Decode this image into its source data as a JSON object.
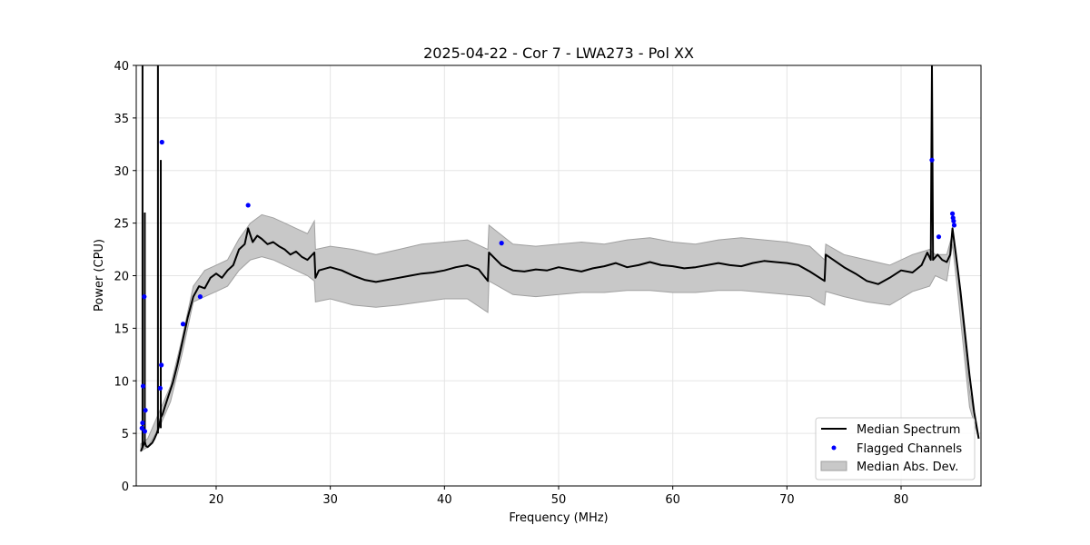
{
  "chart_data": {
    "type": "line",
    "title": "2025-04-22 - Cor 7 - LWA273 - Pol XX",
    "xlabel": "Frequency (MHz)",
    "ylabel": "Power (CPU)",
    "xlim": [
      13.0,
      87.0
    ],
    "ylim": [
      0,
      40
    ],
    "xticks": [
      20,
      30,
      40,
      50,
      60,
      70,
      80
    ],
    "yticks": [
      0,
      5,
      10,
      15,
      20,
      25,
      30,
      35,
      40
    ],
    "grid": true,
    "legend_position": "lower-right",
    "colors": {
      "median": "#000000",
      "flagged": "#0000ff",
      "mad_fill": "#c8c8c8",
      "mad_edge": "#a0a0a0",
      "grid": "#e5e5e5"
    },
    "series": [
      {
        "name": "Median Spectrum",
        "kind": "line",
        "x": [
          13.4,
          13.6,
          13.75,
          13.85,
          14.0,
          14.2,
          14.4,
          14.6,
          14.8,
          14.95,
          15.05,
          15.15,
          15.3,
          15.5,
          15.8,
          16.2,
          16.6,
          17.0,
          17.5,
          18.0,
          18.5,
          19.0,
          19.5,
          20.0,
          20.5,
          21.0,
          21.5,
          22.0,
          22.5,
          22.8,
          23.2,
          23.6,
          24.0,
          24.5,
          25.0,
          25.5,
          26.0,
          26.5,
          27.0,
          27.5,
          28.0,
          28.6,
          28.7,
          29.0,
          30.0,
          31.0,
          32.0,
          33.0,
          34.0,
          35.0,
          36.0,
          37.0,
          38.0,
          39.0,
          40.0,
          41.0,
          42.0,
          43.0,
          43.8,
          43.9,
          45.0,
          46.0,
          47.0,
          48.0,
          49.0,
          50.0,
          51.0,
          52.0,
          53.0,
          54.0,
          55.0,
          56.0,
          57.0,
          58.0,
          59.0,
          60.0,
          61.0,
          62.0,
          63.0,
          64.0,
          65.0,
          66.0,
          67.0,
          68.0,
          69.0,
          70.0,
          71.0,
          72.0,
          73.3,
          73.4,
          75.0,
          76.0,
          77.0,
          78.0,
          79.0,
          80.0,
          81.0,
          81.8,
          82.3,
          82.6,
          82.7,
          82.8,
          83.2,
          83.6,
          84.0,
          84.3,
          84.5,
          84.8,
          85.2,
          85.6,
          86.0,
          86.4,
          86.8
        ],
        "y": [
          3.3,
          3.8,
          4.2,
          3.8,
          3.7,
          3.9,
          4.1,
          4.5,
          5.0,
          5.5,
          6.0,
          6.5,
          6.8,
          7.5,
          8.5,
          9.8,
          11.5,
          13.5,
          16.0,
          18.0,
          19.0,
          18.8,
          19.8,
          20.2,
          19.8,
          20.5,
          21.0,
          22.5,
          23.0,
          24.5,
          23.2,
          23.8,
          23.5,
          23.0,
          23.2,
          22.8,
          22.5,
          22.0,
          22.3,
          21.8,
          21.5,
          22.2,
          19.8,
          20.5,
          20.8,
          20.5,
          20.0,
          19.6,
          19.4,
          19.6,
          19.8,
          20.0,
          20.2,
          20.3,
          20.5,
          20.8,
          21.0,
          20.6,
          19.5,
          22.2,
          21.0,
          20.5,
          20.4,
          20.6,
          20.5,
          20.8,
          20.6,
          20.4,
          20.7,
          20.9,
          21.2,
          20.8,
          21.0,
          21.3,
          21.0,
          20.9,
          20.7,
          20.8,
          21.0,
          21.2,
          21.0,
          20.9,
          21.2,
          21.4,
          21.3,
          21.2,
          21.0,
          20.4,
          19.5,
          22.0,
          20.8,
          20.2,
          19.5,
          19.2,
          19.8,
          20.5,
          20.3,
          21.0,
          22.2,
          21.5,
          40.0,
          21.5,
          22.0,
          21.5,
          21.3,
          22.0,
          24.5,
          22.0,
          18.5,
          14.5,
          10.5,
          7.0,
          4.5
        ]
      },
      {
        "name": "Flagged Channels",
        "kind": "scatter",
        "x": [
          13.5,
          13.55,
          13.6,
          13.7,
          13.8,
          13.75,
          15.1,
          15.2,
          15.25,
          17.1,
          18.6,
          22.8,
          45.0,
          82.7,
          83.3,
          84.5,
          84.55,
          84.6,
          84.65
        ],
        "y": [
          5.5,
          6.0,
          9.5,
          18.0,
          7.2,
          5.2,
          9.3,
          11.5,
          32.7,
          15.4,
          18.0,
          26.7,
          23.1,
          31.0,
          23.7,
          25.9,
          25.5,
          25.2,
          24.8
        ]
      },
      {
        "name": "Median Abs. Dev.",
        "kind": "band",
        "x": [
          13.4,
          14.0,
          15.0,
          16.0,
          17.0,
          18.0,
          19.0,
          20.0,
          21.0,
          22.0,
          23.0,
          24.0,
          25.0,
          26.0,
          27.0,
          28.0,
          28.6,
          28.7,
          30.0,
          32.0,
          34.0,
          36.0,
          38.0,
          40.0,
          42.0,
          43.8,
          43.9,
          46.0,
          48.0,
          50.0,
          52.0,
          54.0,
          56.0,
          58.0,
          60.0,
          62.0,
          64.0,
          66.0,
          68.0,
          70.0,
          72.0,
          73.3,
          73.4,
          75.0,
          77.0,
          79.0,
          81.0,
          82.5,
          83.0,
          84.0,
          84.5,
          85.0,
          86.0,
          86.8
        ],
        "upper": [
          4.0,
          4.5,
          7.0,
          9.5,
          14.0,
          19.0,
          20.5,
          21.0,
          21.5,
          23.5,
          25.0,
          25.8,
          25.5,
          25.0,
          24.5,
          24.0,
          25.2,
          22.5,
          22.8,
          22.5,
          22.0,
          22.5,
          23.0,
          23.2,
          23.4,
          22.5,
          24.8,
          23.0,
          22.8,
          23.0,
          23.2,
          23.0,
          23.4,
          23.6,
          23.2,
          23.0,
          23.4,
          23.6,
          23.4,
          23.2,
          22.8,
          21.5,
          23.0,
          22.0,
          21.5,
          21.0,
          22.0,
          22.5,
          22.0,
          22.0,
          24.0,
          20.0,
          9.0,
          4.5
        ],
        "lower": [
          3.3,
          3.7,
          5.5,
          8.0,
          12.5,
          17.5,
          18.0,
          18.5,
          19.0,
          20.5,
          21.5,
          21.8,
          21.5,
          21.0,
          20.5,
          20.0,
          19.5,
          17.5,
          17.8,
          17.2,
          17.0,
          17.2,
          17.5,
          17.8,
          17.8,
          16.5,
          19.5,
          18.2,
          18.0,
          18.2,
          18.4,
          18.4,
          18.6,
          18.6,
          18.4,
          18.4,
          18.6,
          18.6,
          18.4,
          18.2,
          18.0,
          17.2,
          18.5,
          18.0,
          17.5,
          17.2,
          18.5,
          19.0,
          20.0,
          19.5,
          23.0,
          18.0,
          7.5,
          4.5
        ]
      }
    ]
  }
}
